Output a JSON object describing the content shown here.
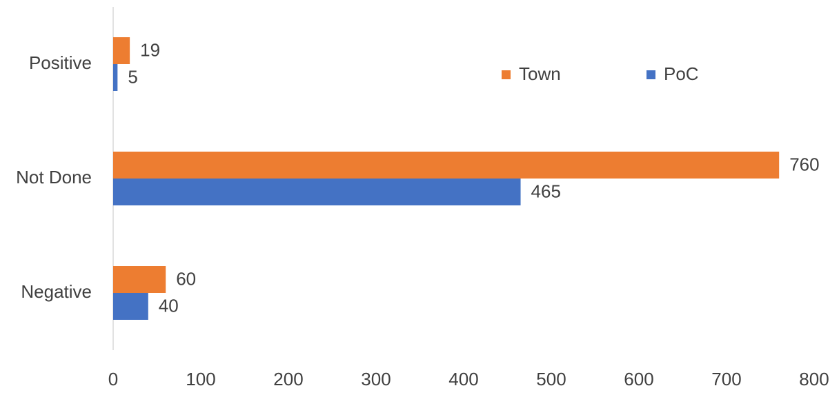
{
  "chart_data": {
    "type": "bar",
    "orientation": "horizontal",
    "categories": [
      "Positive",
      "Not Done",
      "Negative"
    ],
    "series": [
      {
        "name": "Town",
        "color": "#ED7D31",
        "values": [
          19,
          760,
          60
        ]
      },
      {
        "name": "PoC",
        "color": "#4472C4",
        "values": [
          5,
          465,
          40
        ]
      }
    ],
    "xlim": [
      0,
      800
    ],
    "xticks": [
      0,
      100,
      200,
      300,
      400,
      500,
      600,
      700,
      800
    ],
    "grid": false,
    "legend": "top-right"
  }
}
